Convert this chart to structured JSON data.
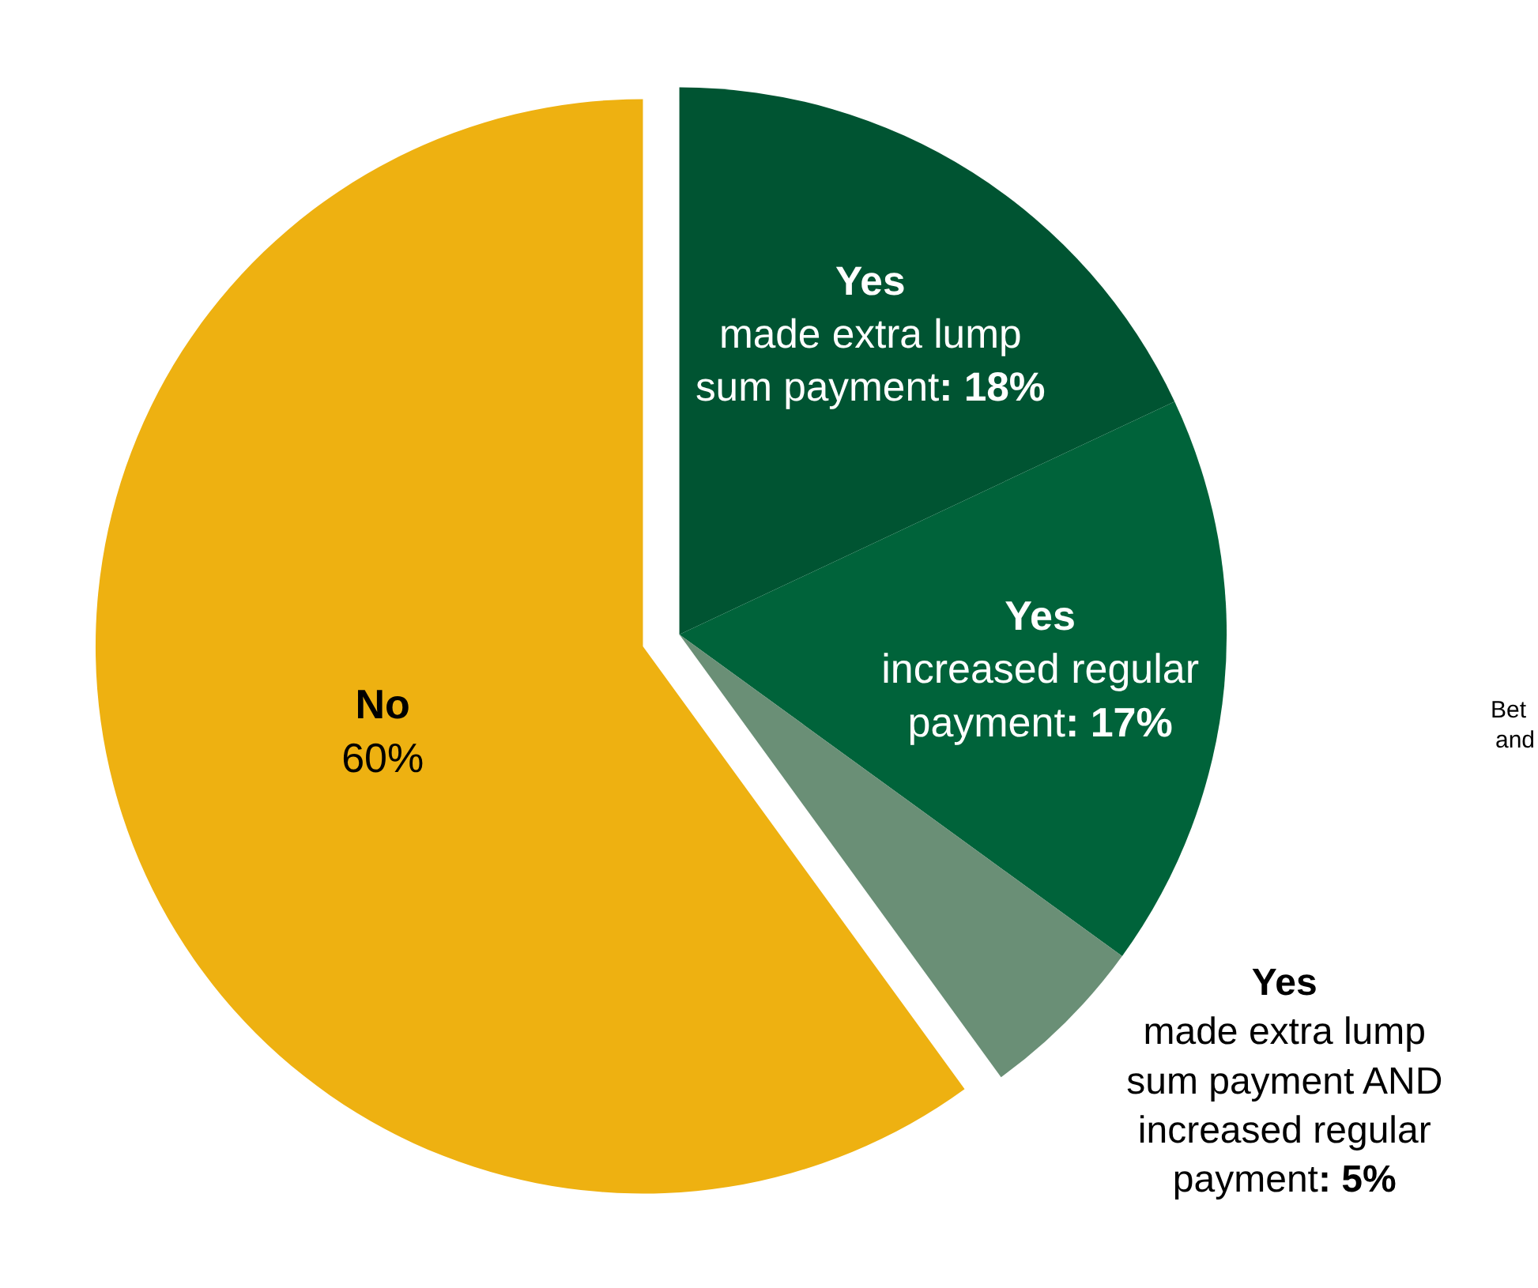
{
  "chart_data": {
    "type": "pie",
    "categories": [
      "Yes\nmade extra lump\nsum payment",
      "Yes\nincreased regular\npayment",
      "Yes\nmade extra lump\nsum payment AND\nincreased regular\npayment",
      "No"
    ],
    "values": [
      18,
      17,
      5,
      60
    ],
    "colors": [
      "#005432",
      "#00633a",
      "#6a8f76",
      "#eeb111"
    ],
    "value_labels": [
      ": 18%",
      ": 17%",
      ": 5%",
      "60%"
    ],
    "annotations": [
      "Bet",
      "and"
    ]
  }
}
